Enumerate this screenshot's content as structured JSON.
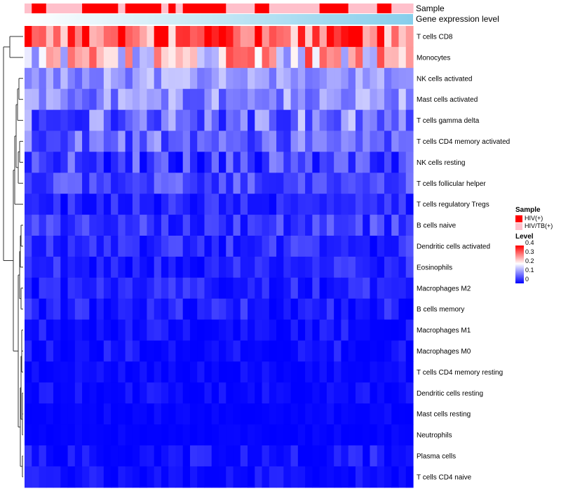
{
  "chart_data": {
    "type": "heatmap",
    "tracks": {
      "sample_label": "Sample",
      "expression_label": "Gene expression level"
    },
    "rows": [
      "T cells CD8",
      "Monocytes",
      "NK cells activated",
      "Mast cells activated",
      "T cells gamma delta",
      "T cells CD4 memory activated",
      "NK cells resting",
      "T cells follicular helper",
      "T cells regulatory  Tregs",
      "B cells naive",
      "Dendritic cells activated",
      "Eosinophils",
      "Macrophages M2",
      "B cells memory",
      "Macrophages M1",
      "Macrophages M0",
      "T cells CD4 memory resting",
      "Dendritic cells resting",
      "Mast cells resting",
      "Neutrophils",
      "Plasma cells",
      "T cells CD4 naive"
    ],
    "sample_groups": [
      1,
      0,
      0,
      1,
      1,
      1,
      1,
      1,
      0,
      0,
      0,
      0,
      0,
      1,
      0,
      0,
      0,
      0,
      0,
      1,
      0,
      1,
      0,
      0,
      0,
      0,
      0,
      0,
      1,
      1,
      1,
      1,
      0,
      0,
      1,
      1,
      1,
      1,
      1,
      1,
      1,
      0,
      0,
      0,
      0,
      1,
      1,
      1,
      1,
      0,
      0,
      1,
      1,
      1
    ],
    "legend": {
      "sample_title": "Sample",
      "groups": [
        {
          "name": "HIV(+)",
          "color": "#ff0000"
        },
        {
          "name": "HIV/TB(+)",
          "color": "#ffc0cb"
        }
      ],
      "level_title": "Level",
      "level_ticks": [
        "0.4",
        "0.3",
        "0.2",
        "0.1",
        "0"
      ],
      "range": [
        0,
        0.4
      ]
    },
    "colors": {
      "low": "#0000ff",
      "mid": "#ffffff",
      "high": "#ff0000",
      "expr_start": "#ffffff",
      "expr_end": "#87ceeb"
    }
  }
}
